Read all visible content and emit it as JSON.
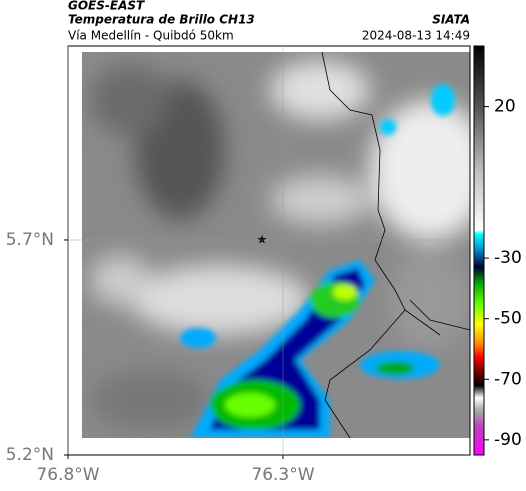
{
  "header": {
    "source": "GOES-EAST",
    "title": "Temperatura de Brillo CH13",
    "org": "SIATA",
    "subtitle": "Vía Medellín - Quibdó 50km",
    "datetime": "2024-08-13 14:49"
  },
  "map": {
    "xlim": [
      -76.8,
      -75.865
    ],
    "ylim": [
      5.2,
      6.151
    ],
    "xticks": [
      {
        "value": -76.8,
        "label": "76.8°W"
      },
      {
        "value": -76.3,
        "label": "76.3°W"
      }
    ],
    "yticks": [
      {
        "value": 5.2,
        "label": "5.2°N"
      },
      {
        "value": 5.7,
        "label": "5.7°N"
      }
    ],
    "grid": true
  },
  "colorbar": {
    "lim": [
      40,
      -95
    ],
    "ticks": [
      20,
      -30,
      -50,
      -70,
      -90
    ]
  }
}
